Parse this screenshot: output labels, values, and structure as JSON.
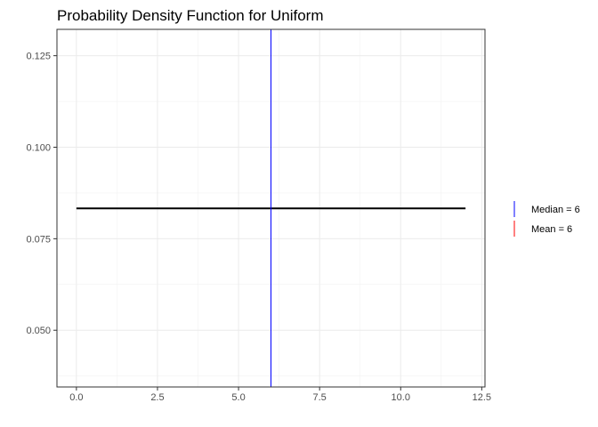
{
  "chart_data": {
    "type": "line",
    "title": "Probability Density Function for Uniform",
    "xlabel": "",
    "ylabel": "",
    "xlim": [
      -0.6,
      12.6
    ],
    "ylim": [
      0.0345,
      0.1322
    ],
    "x_ticks": [
      0,
      2.5,
      5,
      7.5,
      10,
      12.5
    ],
    "x_tick_labels": [
      "0.0",
      "2.5",
      "5.0",
      "7.5",
      "10.0",
      "12.5"
    ],
    "x_minor_ticks": [
      1.25,
      3.75,
      6.25,
      8.75,
      11.25
    ],
    "y_ticks": [
      0.05,
      0.075,
      0.1,
      0.125
    ],
    "y_tick_labels": [
      "0.050",
      "0.075",
      "0.100",
      "0.125"
    ],
    "y_minor_ticks": [
      0.0375,
      0.0625,
      0.0875,
      0.1125
    ],
    "grid": true,
    "series": [
      {
        "x": [
          0,
          12
        ],
        "y": [
          0.0833,
          0.0833
        ],
        "color": "#000000"
      }
    ],
    "vlines": [
      {
        "name": "Median = 6",
        "x": 6,
        "color": "#0000ff"
      },
      {
        "name": "Mean = 6",
        "x": 6,
        "color": "#ff0000"
      }
    ],
    "legend_position": "right",
    "legend": [
      {
        "label": "Median = 6",
        "color": "#0000ff"
      },
      {
        "label": "Mean = 6",
        "color": "#ff0000"
      }
    ]
  }
}
